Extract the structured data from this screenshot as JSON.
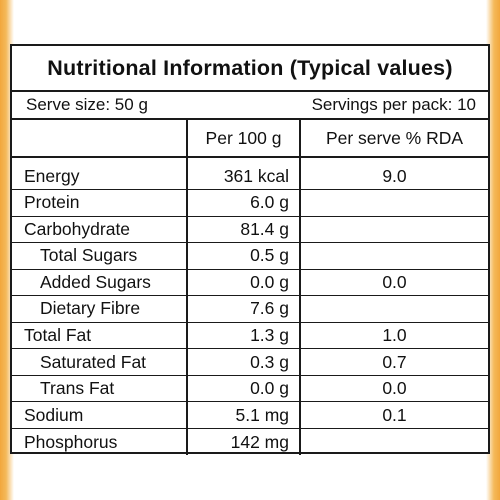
{
  "title": "Nutritional Information (Typical values)",
  "serve_size": "Serve size: 50 g",
  "servings_per_pack": "Servings per pack: 10",
  "columns": {
    "per_100g": "Per 100 g",
    "per_serve_rda": "Per serve % RDA"
  },
  "rows": [
    {
      "name": "Energy",
      "per_100g": "361 kcal",
      "rda": "9.0"
    },
    {
      "name": "Protein",
      "per_100g": "6.0 g",
      "rda": ""
    },
    {
      "name": "Carbohydrate",
      "per_100g": "81.4 g",
      "rda": ""
    },
    {
      "name": "Total Sugars",
      "per_100g": "0.5 g",
      "rda": ""
    },
    {
      "name": "Added Sugars",
      "per_100g": "0.0 g",
      "rda": "0.0"
    },
    {
      "name": "Dietary Fibre",
      "per_100g": "7.6 g",
      "rda": ""
    },
    {
      "name": "Total Fat",
      "per_100g": "1.3 g",
      "rda": "1.0"
    },
    {
      "name": "Saturated Fat",
      "per_100g": "0.3 g",
      "rda": "0.7"
    },
    {
      "name": "Trans Fat",
      "per_100g": "0.0 g",
      "rda": "0.0"
    },
    {
      "name": "Sodium",
      "per_100g": "5.1 mg",
      "rda": "0.1"
    },
    {
      "name": "Phosphorus",
      "per_100g": "142 mg",
      "rda": ""
    }
  ],
  "colors": {
    "border": "#1a1a1a",
    "packaging_accent": "#f2a73c"
  }
}
